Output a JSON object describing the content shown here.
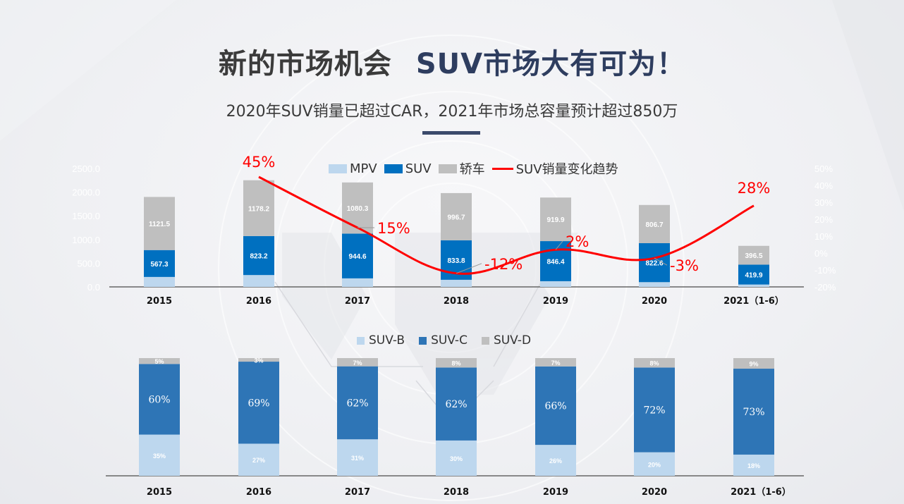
{
  "header": {
    "title_part1": "新的市场机会",
    "title_part2": "SUV市场大有可为！",
    "subtitle": "2020年SUV销量已超过CAR，2021年市场总容量预计超过850万"
  },
  "colors": {
    "mpv": "#bdd7ee",
    "suv": "#0070c0",
    "car": "#bfbfbf",
    "trend": "#ff0000",
    "suv_b": "#bdd7ee",
    "suv_c": "#2e75b6",
    "suv_d": "#bfbfbf",
    "title_dark": "#3b3b3b",
    "title_navy": "#2e3d5f"
  },
  "chart_data": [
    {
      "type": "bar",
      "stacked": true,
      "title": "",
      "categories": [
        "2015",
        "2016",
        "2017",
        "2018",
        "2019",
        "2020",
        "2021（1-6）"
      ],
      "series": [
        {
          "name": "MPV",
          "values": [
            210,
            250,
            180,
            150,
            120,
            100,
            50
          ],
          "labeled": false
        },
        {
          "name": "SUV",
          "values": [
            567.3,
            823.2,
            944.6,
            833.8,
            846.4,
            822.6,
            419.9
          ],
          "labels": [
            "567.3",
            "823.2",
            "944.6",
            "833.8",
            "846.4",
            "822.6",
            "419.9"
          ]
        },
        {
          "name": "轿车",
          "values": [
            1121.5,
            1178.2,
            1080.3,
            996.7,
            919.9,
            806.7,
            396.5
          ],
          "labels": [
            "1121.5",
            "1178.2",
            "1080.3",
            "996.7",
            "919.9",
            "806.7",
            "396.5"
          ]
        }
      ],
      "line_series": {
        "name": "SUV销量变化趋势",
        "axis": "right",
        "categories": [
          "2016",
          "2017",
          "2018",
          "2019",
          "2020",
          "2021（1-6）"
        ],
        "values": [
          45,
          15,
          -12,
          2,
          -3,
          28
        ],
        "labels": [
          "45%",
          "15%",
          "-12%",
          "2%",
          "-3%",
          "28%"
        ]
      },
      "y_left": {
        "ticks": [
          "0.0",
          "500.0",
          "1000.0",
          "1500.0",
          "2000.0",
          "2500.0"
        ],
        "ylim": [
          0,
          2500
        ]
      },
      "y_right": {
        "ticks": [
          "-20%",
          "-10%",
          "0%",
          "10%",
          "20%",
          "30%",
          "40%",
          "50%"
        ],
        "ylim": [
          -20,
          50
        ]
      },
      "legend": {
        "placement": "top-center",
        "items": [
          "MPV",
          "SUV",
          "轿车",
          "SUV销量变化趋势"
        ]
      },
      "grid": false
    },
    {
      "type": "bar",
      "stacked": true,
      "percent": true,
      "categories": [
        "2015",
        "2016",
        "2017",
        "2018",
        "2019",
        "2020",
        "2021（1-6）"
      ],
      "series": [
        {
          "name": "SUV-B",
          "values": [
            35,
            27,
            31,
            30,
            26,
            20,
            18
          ]
        },
        {
          "name": "SUV-C",
          "values": [
            60,
            69,
            62,
            62,
            66,
            72,
            73
          ]
        },
        {
          "name": "SUV-D",
          "values": [
            5,
            3,
            7,
            8,
            7,
            8,
            9
          ]
        }
      ],
      "legend": {
        "placement": "top-center",
        "items": [
          "SUV-B",
          "SUV-C",
          "SUV-D"
        ]
      },
      "grid": false
    }
  ]
}
